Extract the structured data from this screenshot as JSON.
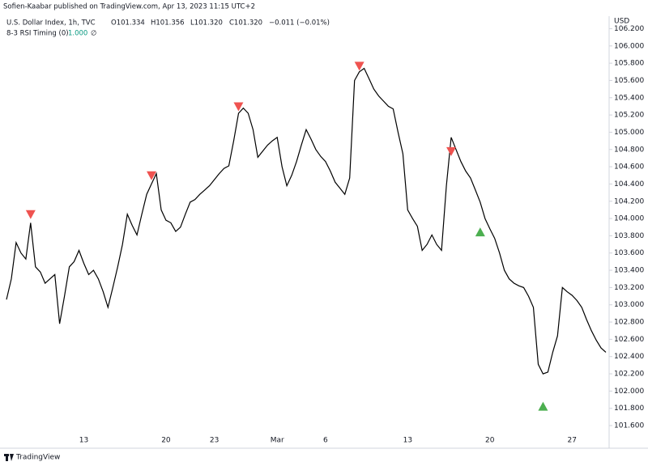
{
  "header": {
    "published": "Sofien-Kaabar published on TradingView.com, Apr 13, 2023 11:15 UTC+2",
    "symbol": "U.S. Dollar Index, 1h, TVC",
    "open": "O101.334",
    "high": "H101.356",
    "low": "L101.320",
    "close": "C101.320",
    "change": "−0.011 (−0.01%)",
    "indicator": "8-3 RSI Timing (0)",
    "indicator_value": "1.000",
    "indicator_extra": "∅",
    "currency": "USD"
  },
  "footer": {
    "brand": "TradingView"
  },
  "chart_data": {
    "type": "line",
    "categories": [
      null,
      null,
      null,
      null,
      null,
      null,
      null,
      null,
      null,
      null,
      null,
      null,
      null,
      null,
      null,
      null,
      "13",
      null,
      null,
      null,
      null,
      null,
      null,
      null,
      null,
      null,
      null,
      null,
      null,
      null,
      null,
      null,
      null,
      "20",
      null,
      null,
      null,
      null,
      null,
      null,
      null,
      null,
      null,
      "23",
      null,
      null,
      null,
      null,
      null,
      null,
      null,
      null,
      null,
      null,
      null,
      null,
      "Mar",
      null,
      null,
      null,
      null,
      null,
      null,
      null,
      null,
      null,
      "6",
      null,
      null,
      null,
      null,
      null,
      null,
      null,
      null,
      null,
      null,
      null,
      null,
      null,
      null,
      null,
      null,
      "13",
      null,
      null,
      null,
      null,
      null,
      null,
      null,
      null,
      null,
      null,
      null,
      null,
      null,
      null,
      null,
      null,
      "20",
      null,
      null,
      null,
      null,
      null,
      null,
      null,
      null,
      null,
      null,
      null,
      null,
      null,
      null,
      null,
      null,
      "27",
      null,
      null,
      null,
      null,
      null,
      null,
      null
    ],
    "series": [
      {
        "color": "#000000",
        "values": [
          103.06,
          103.3,
          103.72,
          103.6,
          103.53,
          103.95,
          103.44,
          103.38,
          103.25,
          103.3,
          103.35,
          102.78,
          103.1,
          103.44,
          103.5,
          103.63,
          103.48,
          103.35,
          103.4,
          103.3,
          103.15,
          102.97,
          103.2,
          103.44,
          103.7,
          104.05,
          103.92,
          103.81,
          104.05,
          104.28,
          104.4,
          104.52,
          104.1,
          103.98,
          103.95,
          103.85,
          103.9,
          104.05,
          104.19,
          104.22,
          104.28,
          104.33,
          104.38,
          104.45,
          104.52,
          104.58,
          104.61,
          104.9,
          105.22,
          105.28,
          105.22,
          105.03,
          104.71,
          104.78,
          104.85,
          104.9,
          104.94,
          104.6,
          104.38,
          104.5,
          104.66,
          104.85,
          105.03,
          104.92,
          104.8,
          104.72,
          104.66,
          104.55,
          104.42,
          104.35,
          104.28,
          104.47,
          105.6,
          105.7,
          105.74,
          105.62,
          105.5,
          105.42,
          105.36,
          105.3,
          105.27,
          105.0,
          104.75,
          104.1,
          104.0,
          103.91,
          103.63,
          103.7,
          103.81,
          103.7,
          103.63,
          104.38,
          104.94,
          104.8,
          104.66,
          104.55,
          104.47,
          104.33,
          104.19,
          104.0,
          103.88,
          103.77,
          103.6,
          103.4,
          103.3,
          103.25,
          103.22,
          103.2,
          103.1,
          102.97,
          102.31,
          102.2,
          102.22,
          102.45,
          102.64,
          103.2,
          103.15,
          103.11,
          103.05,
          102.97,
          102.83,
          102.7,
          102.59,
          102.5,
          102.45
        ]
      },
      {
        "color": "#ef5350",
        "marker": "triangle-down",
        "values": [
          null,
          null,
          null,
          null,
          null,
          104.05,
          null,
          null,
          null,
          null,
          null,
          null,
          null,
          null,
          null,
          null,
          null,
          null,
          null,
          null,
          null,
          null,
          null,
          null,
          null,
          null,
          null,
          null,
          null,
          null,
          104.5,
          null,
          null,
          null,
          null,
          null,
          null,
          null,
          null,
          null,
          null,
          null,
          null,
          null,
          null,
          null,
          null,
          null,
          105.3,
          null,
          null,
          null,
          null,
          null,
          null,
          null,
          null,
          null,
          null,
          null,
          null,
          null,
          null,
          null,
          null,
          null,
          null,
          null,
          null,
          null,
          null,
          null,
          null,
          105.77,
          null,
          null,
          null,
          null,
          null,
          null,
          null,
          null,
          null,
          null,
          null,
          null,
          null,
          null,
          null,
          null,
          null,
          null,
          104.78,
          null,
          null,
          null,
          null,
          null,
          null,
          null,
          null,
          null,
          null,
          null,
          null,
          null,
          null,
          null,
          null,
          null,
          null,
          null,
          null,
          null,
          null,
          null,
          null,
          null,
          null,
          null,
          null,
          null,
          null,
          null,
          null
        ]
      },
      {
        "color": "#4caf50",
        "marker": "triangle-up",
        "values": [
          null,
          null,
          null,
          null,
          null,
          null,
          null,
          null,
          null,
          null,
          null,
          null,
          null,
          null,
          null,
          null,
          null,
          null,
          null,
          null,
          null,
          null,
          null,
          null,
          null,
          null,
          null,
          null,
          null,
          null,
          null,
          null,
          null,
          null,
          null,
          null,
          null,
          null,
          null,
          null,
          null,
          null,
          null,
          null,
          null,
          null,
          null,
          null,
          null,
          null,
          null,
          null,
          null,
          null,
          null,
          null,
          null,
          null,
          null,
          null,
          null,
          null,
          null,
          null,
          null,
          null,
          null,
          null,
          null,
          null,
          null,
          null,
          null,
          null,
          null,
          null,
          null,
          null,
          null,
          null,
          null,
          null,
          null,
          null,
          null,
          null,
          null,
          null,
          null,
          null,
          null,
          null,
          null,
          null,
          null,
          null,
          null,
          null,
          103.84,
          null,
          null,
          null,
          null,
          null,
          null,
          null,
          null,
          null,
          null,
          null,
          null,
          101.82,
          null,
          null,
          null,
          null,
          null,
          null,
          null,
          null,
          null,
          null,
          null,
          null,
          null
        ]
      }
    ],
    "ylim": [
      101.516,
      106.27
    ],
    "yticks": [
      {
        "value": 101.6,
        "label": "101.600"
      },
      {
        "value": 101.8,
        "label": "101.800"
      },
      {
        "value": 102.0,
        "label": "102.000"
      },
      {
        "value": 102.2,
        "label": "102.200"
      },
      {
        "value": 102.4,
        "label": "102.400"
      },
      {
        "value": 102.6,
        "label": "102.600"
      },
      {
        "value": 102.8,
        "label": "102.800"
      },
      {
        "value": 103.0,
        "label": "103.000"
      },
      {
        "value": 103.2,
        "label": "103.200"
      },
      {
        "value": 103.4,
        "label": "103.400"
      },
      {
        "value": 103.6,
        "label": "103.600"
      },
      {
        "value": 103.8,
        "label": "103.800"
      },
      {
        "value": 104.0,
        "label": "104.000"
      },
      {
        "value": 104.2,
        "label": "104.200"
      },
      {
        "value": 104.4,
        "label": "104.400"
      },
      {
        "value": 104.6,
        "label": "104.600"
      },
      {
        "value": 104.8,
        "label": "104.800"
      },
      {
        "value": 105.0,
        "label": "105.000"
      },
      {
        "value": 105.2,
        "label": "105.200"
      },
      {
        "value": 105.4,
        "label": "105.400"
      },
      {
        "value": 105.6,
        "label": "105.600"
      },
      {
        "value": 105.8,
        "label": "105.800"
      },
      {
        "value": 106.0,
        "label": "106.000"
      },
      {
        "value": 106.2,
        "label": "106.200"
      }
    ],
    "grid": false
  }
}
